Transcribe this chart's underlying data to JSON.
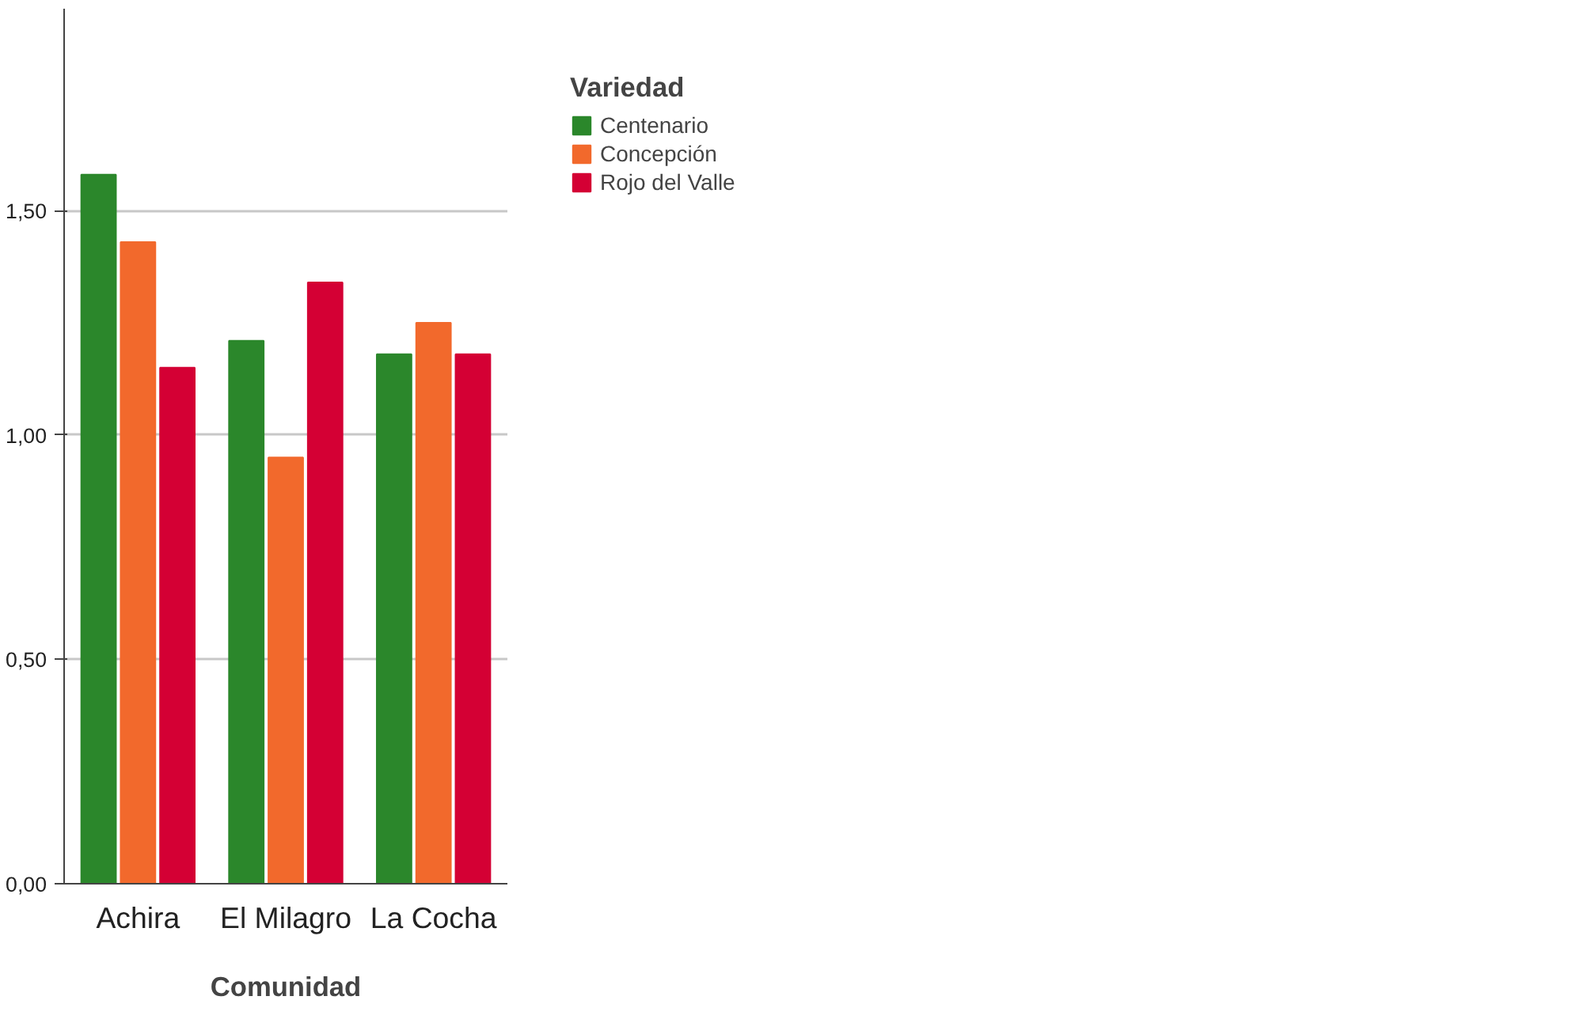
{
  "chart_data": {
    "type": "bar",
    "xlabel": "Comunidad",
    "legend_title": "Variedad",
    "categories": [
      "Achira",
      "El Milagro",
      "La Cocha"
    ],
    "series": [
      {
        "name": "Centenario",
        "color": "#2b872b",
        "values": [
          1.58,
          1.21,
          1.18
        ]
      },
      {
        "name": "Concepción",
        "color": "#f2692c",
        "values": [
          1.43,
          0.95,
          1.25
        ]
      },
      {
        "name": "Rojo del Valle",
        "color": "#d40034",
        "values": [
          1.15,
          1.34,
          1.18
        ]
      }
    ],
    "ylim": [
      0,
      1.95
    ],
    "yticks": [
      {
        "value": 0,
        "label": "0,00"
      },
      {
        "value": 0.5,
        "label": "0,50"
      },
      {
        "value": 1.0,
        "label": "1,00"
      },
      {
        "value": 1.5,
        "label": "1,50"
      }
    ],
    "grid": "y",
    "legend": "right"
  }
}
